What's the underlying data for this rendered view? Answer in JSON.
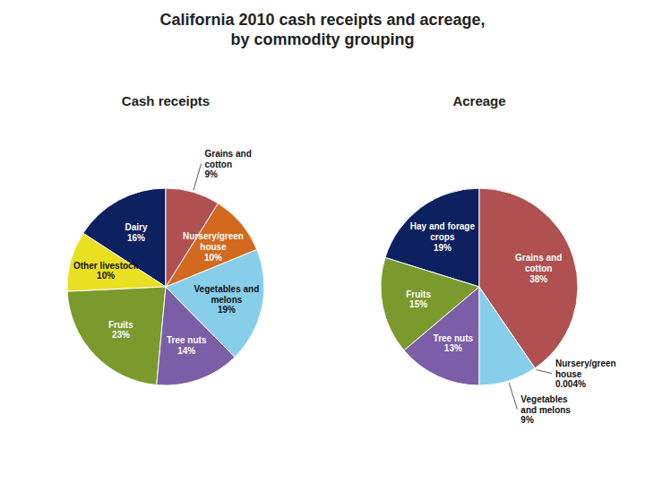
{
  "title": "California 2010 cash receipts and acreage,\nby commodity grouping",
  "chart_data": [
    {
      "type": "pie",
      "title": "Cash receipts",
      "categories": [
        "Dairy",
        "Other livestock",
        "Fruits",
        "Tree nuts",
        "Vegetables and\nmelons",
        "Nursery/green\nhouse",
        "Grains and\ncotton"
      ],
      "values": [
        16,
        10,
        23,
        14,
        19,
        10,
        9
      ],
      "value_labels": [
        "16%",
        "10%",
        "23%",
        "14%",
        "19%",
        "10%",
        "9%"
      ],
      "colors": [
        "#0d2060",
        "#e8e020",
        "#7a9a2e",
        "#7b5ea7",
        "#87ceeb",
        "#d2691e",
        "#b05050"
      ],
      "data_labels": true
    },
    {
      "type": "pie",
      "title": "Acreage",
      "categories": [
        "Hay and forage\ncrops",
        "Fruits",
        "Tree nuts",
        "Vegetables\nand melons",
        "Nursery/green\nhouse",
        "Grains and\ncotton"
      ],
      "values": [
        19,
        15,
        13,
        9,
        0.004,
        38
      ],
      "value_labels": [
        "19%",
        "15%",
        "13%",
        "9%",
        "0.004%",
        "38%"
      ],
      "colors": [
        "#0d2060",
        "#7a9a2e",
        "#7b5ea7",
        "#87ceeb",
        "#e8a020",
        "#b05050"
      ],
      "data_labels": true
    }
  ]
}
